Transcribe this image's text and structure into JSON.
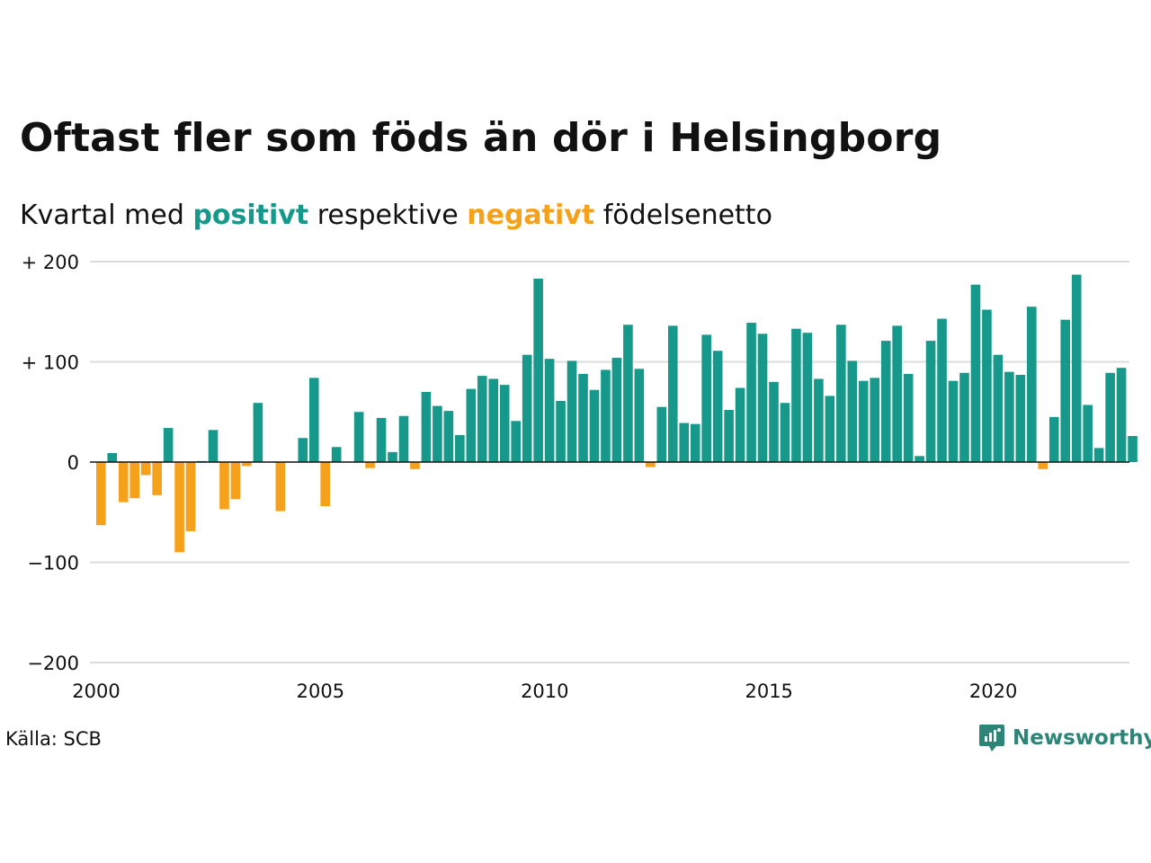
{
  "title": "Oftast fler som föds än dör i Helsingborg",
  "subtitle": {
    "prefix": "Kvartal med",
    "positive_word": "positivt",
    "middle": "respektive",
    "negative_word": "negativt",
    "suffix": "födelsenetto"
  },
  "source": "Källa: SCB",
  "brand": "Newsworthy",
  "colors": {
    "positive": "#16998a",
    "negative": "#f5a11c",
    "grid": "#dcdcdc",
    "zero_line": "#111111",
    "brand": "#2c8577"
  },
  "chart_data": {
    "type": "bar",
    "x_start_year": 2000,
    "bars_per_year": 4,
    "ylim": [
      -200,
      200
    ],
    "y_ticks": [
      {
        "value": 200,
        "label": "+ 200"
      },
      {
        "value": 100,
        "label": "+ 100"
      },
      {
        "value": 0,
        "label": "0"
      },
      {
        "value": -100,
        "label": "−100"
      },
      {
        "value": -200,
        "label": "−200"
      }
    ],
    "x_ticks": [
      {
        "year": 2000,
        "label": "2000"
      },
      {
        "year": 2005,
        "label": "2005"
      },
      {
        "year": 2010,
        "label": "2010"
      },
      {
        "year": 2015,
        "label": "2015"
      },
      {
        "year": 2020,
        "label": "2020"
      }
    ],
    "grid": true,
    "values": [
      -63,
      9,
      -40,
      -36,
      -13,
      -33,
      34,
      -90,
      -69,
      1,
      32,
      -47,
      -37,
      -4,
      59,
      0,
      -49,
      0,
      24,
      84,
      -44,
      15,
      0,
      50,
      -6,
      44,
      10,
      46,
      -7,
      70,
      56,
      51,
      27,
      73,
      86,
      83,
      77,
      41,
      107,
      183,
      103,
      61,
      101,
      88,
      72,
      92,
      104,
      137,
      93,
      -5,
      55,
      136,
      39,
      38,
      127,
      111,
      52,
      74,
      139,
      128,
      80,
      59,
      133,
      129,
      83,
      66,
      137,
      101,
      81,
      84,
      121,
      136,
      88,
      6,
      121,
      143,
      81,
      89,
      177,
      152,
      107,
      90,
      87,
      155,
      -7,
      45,
      142,
      187,
      57,
      14,
      89,
      94,
      26
    ]
  }
}
